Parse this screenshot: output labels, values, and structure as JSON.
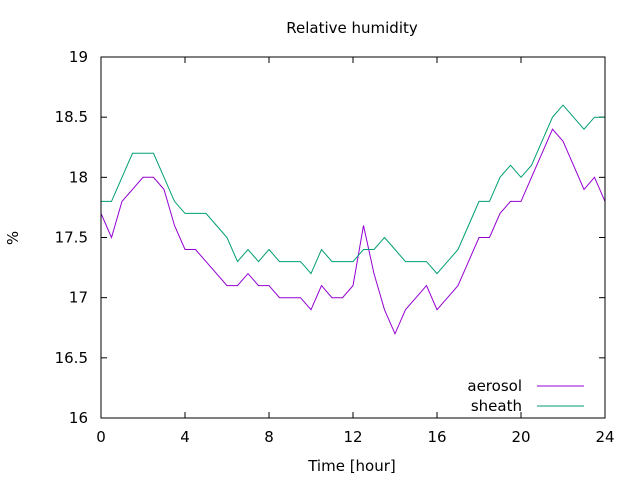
{
  "chart_data": {
    "type": "line",
    "title": "Relative humidity",
    "xlabel": "Time [hour]",
    "ylabel": "%",
    "xlim": [
      0,
      24
    ],
    "ylim": [
      16,
      19
    ],
    "xticks": [
      "0",
      "4",
      "8",
      "12",
      "16",
      "20",
      "24"
    ],
    "yticks": [
      "16",
      "16.5",
      "17",
      "17.5",
      "18",
      "18.5",
      "19"
    ],
    "grid": false,
    "legend_position": "bottom-right",
    "series": [
      {
        "name": "aerosol",
        "color": "#9400d3",
        "x": [
          0,
          0.5,
          1,
          1.5,
          2,
          2.5,
          3,
          3.5,
          4,
          4.5,
          5,
          5.5,
          6,
          6.5,
          7,
          7.5,
          8,
          8.5,
          9,
          9.5,
          10,
          10.5,
          11,
          11.5,
          12,
          12.5,
          13,
          13.5,
          14,
          14.5,
          15,
          15.5,
          16,
          16.5,
          17,
          17.5,
          18,
          18.5,
          19,
          19.5,
          20,
          20.5,
          21,
          21.5,
          22,
          22.5,
          23,
          23.5,
          24
        ],
        "y": [
          17.7,
          17.5,
          17.8,
          17.9,
          18.0,
          18.0,
          17.9,
          17.6,
          17.4,
          17.4,
          17.3,
          17.2,
          17.1,
          17.1,
          17.2,
          17.1,
          17.1,
          17.0,
          17.0,
          17.0,
          16.9,
          17.1,
          17.0,
          17.0,
          17.1,
          17.6,
          17.2,
          16.9,
          16.7,
          16.9,
          17.0,
          17.1,
          16.9,
          17.0,
          17.1,
          17.3,
          17.5,
          17.5,
          17.7,
          17.8,
          17.8,
          18.0,
          18.2,
          18.4,
          18.3,
          18.1,
          17.9,
          18.0,
          17.8
        ]
      },
      {
        "name": "sheath",
        "color": "#009e73",
        "x": [
          0,
          0.5,
          1,
          1.5,
          2,
          2.5,
          3,
          3.5,
          4,
          4.5,
          5,
          5.5,
          6,
          6.5,
          7,
          7.5,
          8,
          8.5,
          9,
          9.5,
          10,
          10.5,
          11,
          11.5,
          12,
          12.5,
          13,
          13.5,
          14,
          14.5,
          15,
          15.5,
          16,
          16.5,
          17,
          17.5,
          18,
          18.5,
          19,
          19.5,
          20,
          20.5,
          21,
          21.5,
          22,
          22.5,
          23,
          23.5,
          24
        ],
        "y": [
          17.8,
          17.8,
          18.0,
          18.2,
          18.2,
          18.2,
          18.0,
          17.8,
          17.7,
          17.7,
          17.7,
          17.6,
          17.5,
          17.3,
          17.4,
          17.3,
          17.4,
          17.3,
          17.3,
          17.3,
          17.2,
          17.4,
          17.3,
          17.3,
          17.3,
          17.4,
          17.4,
          17.5,
          17.4,
          17.3,
          17.3,
          17.3,
          17.2,
          17.3,
          17.4,
          17.6,
          17.8,
          17.8,
          18.0,
          18.1,
          18.0,
          18.1,
          18.3,
          18.5,
          18.6,
          18.5,
          18.4,
          18.5,
          18.5
        ]
      }
    ]
  }
}
